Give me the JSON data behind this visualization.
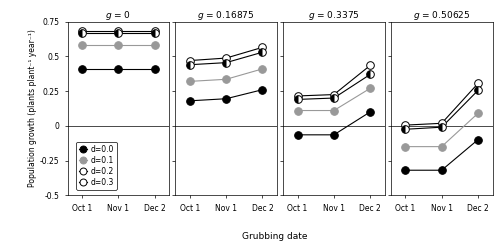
{
  "g_labels": [
    "g = 0",
    "g = 0.16875",
    "g = 0.3375",
    "g = 0.50625"
  ],
  "x_labels": [
    "Oct 1",
    "Nov 1",
    "Dec 2"
  ],
  "x_ticks": [
    0,
    1,
    2
  ],
  "ylabel": "Population growth (plants plant⁻¹ year⁻¹)",
  "xlabel": "Grubbing date",
  "ylim": [
    -0.5,
    0.75
  ],
  "yticks": [
    -0.5,
    -0.25,
    0.0,
    0.25,
    0.5,
    0.75
  ],
  "ytick_labels": [
    "-0.5",
    "-0.25",
    "0",
    "0.25",
    "0.5",
    "0.75"
  ],
  "d_labels": [
    "d=0.0",
    "d=0.1",
    "d=0.2",
    "d=0.3"
  ],
  "series": [
    {
      "d0.0": [
        0.41,
        0.41,
        0.41
      ],
      "d0.1": [
        0.585,
        0.585,
        0.585
      ],
      "d0.2": [
        0.67,
        0.67,
        0.67
      ],
      "d0.3": [
        0.685,
        0.685,
        0.685
      ]
    },
    {
      "d0.0": [
        0.18,
        0.195,
        0.26
      ],
      "d0.1": [
        0.32,
        0.335,
        0.41
      ],
      "d0.2": [
        0.44,
        0.455,
        0.53
      ],
      "d0.3": [
        0.47,
        0.488,
        0.565
      ]
    },
    {
      "d0.0": [
        -0.065,
        -0.065,
        0.1
      ],
      "d0.1": [
        0.11,
        0.11,
        0.27
      ],
      "d0.2": [
        0.19,
        0.2,
        0.37
      ],
      "d0.3": [
        0.215,
        0.225,
        0.435
      ]
    },
    {
      "d0.0": [
        -0.32,
        -0.32,
        -0.1
      ],
      "d0.1": [
        -0.15,
        -0.15,
        0.09
      ],
      "d0.2": [
        -0.025,
        -0.01,
        0.255
      ],
      "d0.3": [
        0.005,
        0.018,
        0.305
      ]
    }
  ],
  "figsize": [
    5.0,
    2.41
  ],
  "dpi": 100
}
